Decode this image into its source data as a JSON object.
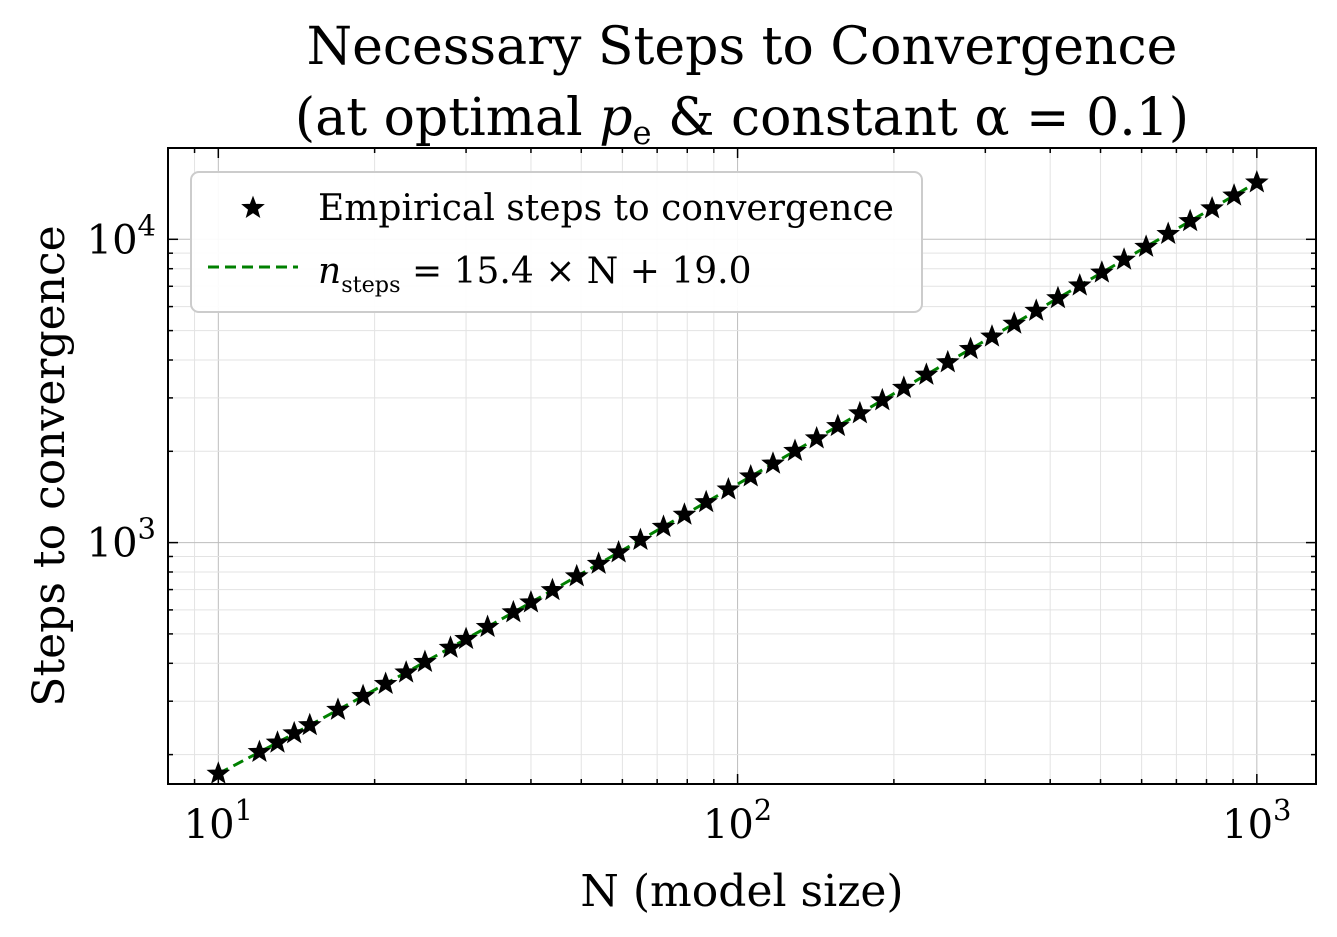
{
  "chart_data": {
    "type": "scatter",
    "title": [
      "Necessary Steps to Convergence",
      "(at optimal p_e & constant α = 0.1)"
    ],
    "xlabel": "N (model size)",
    "ylabel": "Steps to convergence",
    "xscale": "log",
    "yscale": "log",
    "xlim": [
      8,
      1300
    ],
    "ylim": [
      160,
      20000
    ],
    "xticks": [
      {
        "value": 10,
        "label": "10^1"
      },
      {
        "value": 100,
        "label": "10^2"
      },
      {
        "value": 1000,
        "label": "10^3"
      }
    ],
    "yticks": [
      {
        "value": 1000,
        "label": "10^3"
      },
      {
        "value": 10000,
        "label": "10^4"
      }
    ],
    "grid": true,
    "legend_position": "top-left",
    "series": [
      {
        "name": "Empirical steps to convergence",
        "kind": "scatter",
        "marker": "star",
        "color": "#000000",
        "x": [
          10,
          12,
          13,
          14,
          15,
          17,
          19,
          21,
          23,
          25,
          28,
          30,
          33,
          37,
          40,
          44,
          49,
          54,
          59,
          65,
          72,
          79,
          87,
          96,
          106,
          117,
          129,
          142,
          156,
          172,
          190,
          209,
          231,
          254,
          281,
          309,
          341,
          376,
          414,
          456,
          503,
          555,
          612,
          675,
          744,
          820,
          904,
          1000
        ],
        "y": [
          173,
          204,
          219,
          235,
          250,
          281,
          312,
          342,
          373,
          404,
          450,
          481,
          527,
          589,
          635,
          697,
          774,
          851,
          928,
          1020,
          1127,
          1236,
          1359,
          1497,
          1652,
          1821,
          2006,
          2206,
          2422,
          2668,
          2945,
          3238,
          3576,
          3931,
          4347,
          4778,
          5270,
          5809,
          6395,
          7041,
          7765,
          8566,
          9444,
          10414,
          11477,
          12647,
          13940,
          15400
        ]
      },
      {
        "name": "n_steps = 15.4 × N + 19.0",
        "kind": "line",
        "style": "dashed",
        "color": "#008000",
        "slope": 15.4,
        "intercept": 19.0,
        "x_range": [
          10,
          1000
        ]
      }
    ]
  }
}
